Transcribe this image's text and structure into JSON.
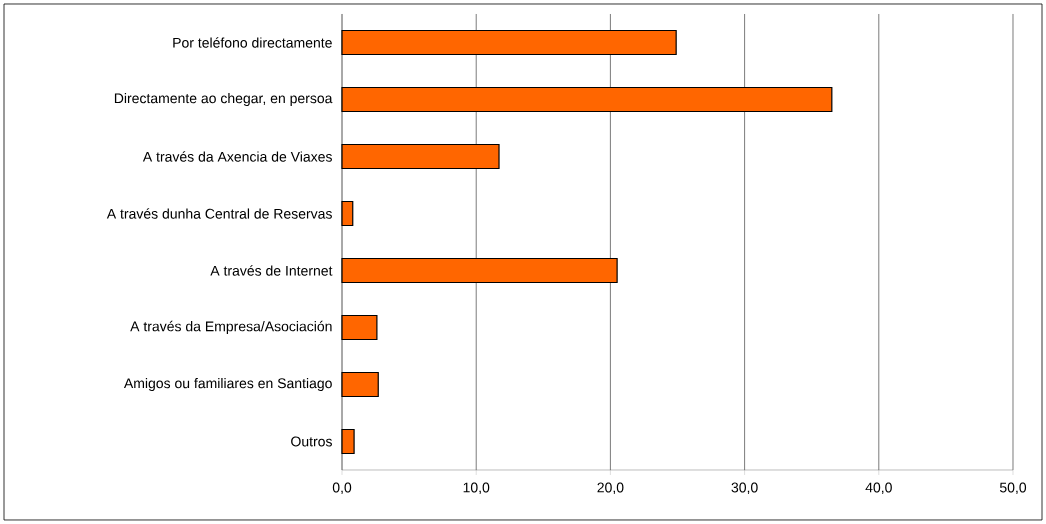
{
  "chart_data": {
    "type": "bar",
    "orientation": "horizontal",
    "categories": [
      "Por teléfono directamente",
      "Directamente ao chegar, en persoa",
      "A través da Axencia de Viaxes",
      "A través dunha Central de Reservas",
      "A través de Internet",
      "A través da Empresa/Asociación",
      "Amigos ou familiares en Santiago",
      "Outros"
    ],
    "values": [
      24.9,
      36.5,
      11.7,
      0.8,
      20.5,
      2.6,
      2.7,
      0.9
    ],
    "color": "#ff6600",
    "xlim": [
      0,
      50
    ],
    "xticks": [
      {
        "value": 0,
        "label": "0,0"
      },
      {
        "value": 10,
        "label": "10,0"
      },
      {
        "value": 20,
        "label": "20,0"
      },
      {
        "value": 30,
        "label": "30,0"
      },
      {
        "value": 40,
        "label": "40,0"
      },
      {
        "value": 50,
        "label": "50,0"
      }
    ],
    "grid": "x"
  }
}
